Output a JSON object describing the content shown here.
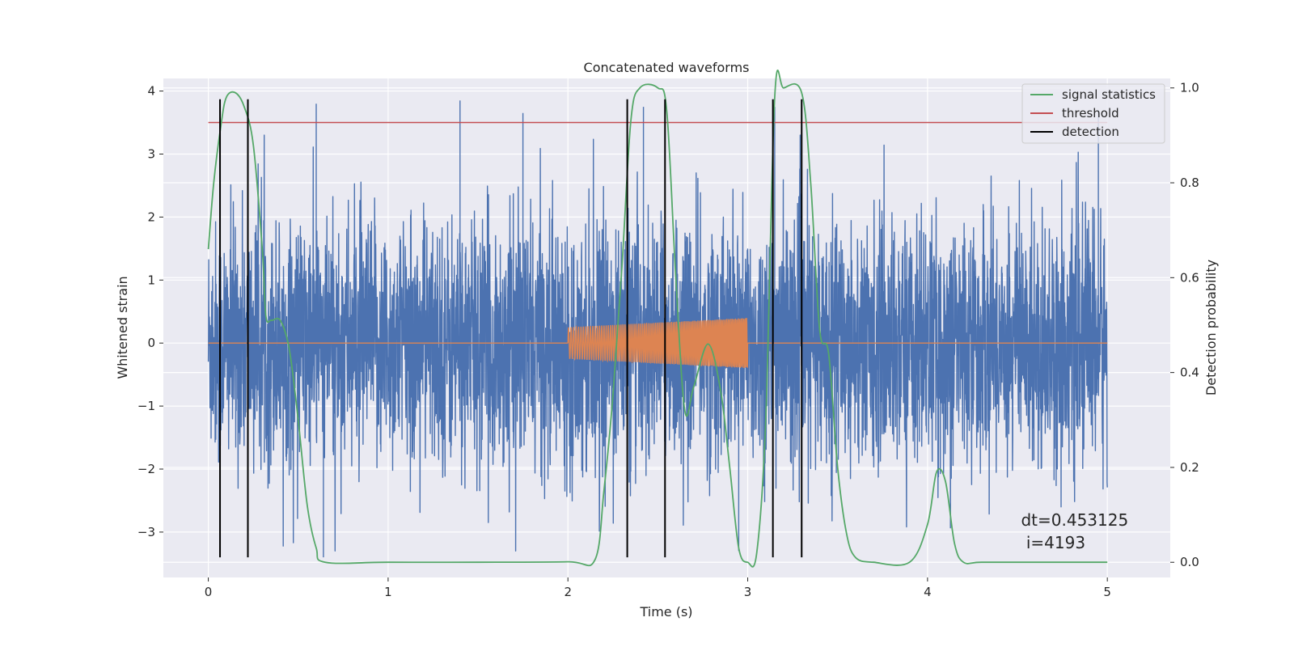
{
  "chart_data": {
    "type": "line",
    "title": "Concatenated waveforms",
    "xlabel": "Time (s)",
    "ylabel": "Whitened strain",
    "y2label": "Detection probability",
    "xlim": [
      -0.25,
      5.35
    ],
    "ylim": [
      -3.72,
      4.2
    ],
    "y2lim": [
      -0.032,
      1.02
    ],
    "xticks": [
      0,
      1,
      2,
      3,
      4,
      5
    ],
    "yticks": [
      -3,
      -2,
      -1,
      0,
      1,
      2,
      3,
      4
    ],
    "y2ticks": [
      0.0,
      0.2,
      0.4,
      0.6,
      0.8,
      1.0
    ],
    "xtick_labels": [
      "0",
      "1",
      "2",
      "3",
      "4",
      "5"
    ],
    "ytick_labels": [
      "−3",
      "−2",
      "−1",
      "0",
      "1",
      "2",
      "3",
      "4"
    ],
    "y2tick_labels": [
      "0.0",
      "0.2",
      "0.4",
      "0.6",
      "0.8",
      "1.0"
    ],
    "grid": true,
    "legend_position": "top-right",
    "legend": [
      {
        "label": "signal statistics",
        "color": "#55a868"
      },
      {
        "label": "threshold",
        "color": "#c44e52"
      },
      {
        "label": "detection",
        "color": "#000000"
      }
    ],
    "series": [
      {
        "axis": "left",
        "color": "#4c72b0",
        "description": "whitened strain noise, amplitude roughly ±2.5 with spikes to 3.8",
        "x_range": [
          0,
          5
        ],
        "envelope_typical": 2.4,
        "spikes": [
          {
            "x": 0.6,
            "y": 3.8
          },
          {
            "x": 1.4,
            "y": 3.85
          },
          {
            "x": 1.75,
            "y": 3.65
          },
          {
            "x": 2.42,
            "y": 3.75
          },
          {
            "x": 3.15,
            "y": 3.75
          },
          {
            "x": 0.64,
            "y": -3.4
          },
          {
            "x": 4.95,
            "y": 3.7
          },
          {
            "x": 2.95,
            "y": -3.3
          }
        ]
      },
      {
        "axis": "left",
        "color": "#dd8452",
        "description": "injected waveform: zero except chirp between 2 and 3 s",
        "chirp_start": 2.0,
        "chirp_end": 3.0,
        "amplitude_start": 0.25,
        "amplitude_end": 0.4
      },
      {
        "name": "signal statistics",
        "axis": "right",
        "color": "#55a868",
        "x": [
          0.0,
          0.03,
          0.07,
          0.1,
          0.15,
          0.2,
          0.25,
          0.3,
          0.32,
          0.35,
          0.4,
          0.45,
          0.5,
          0.55,
          0.6,
          0.65,
          1.0,
          1.5,
          2.0,
          2.15,
          2.2,
          2.25,
          2.3,
          2.35,
          2.4,
          2.5,
          2.55,
          2.6,
          2.65,
          2.7,
          2.78,
          2.85,
          2.9,
          2.95,
          3.0,
          3.05,
          3.1,
          3.15,
          3.2,
          3.3,
          3.35,
          3.4,
          3.45,
          3.5,
          3.55,
          3.6,
          3.7,
          3.9,
          4.0,
          4.05,
          4.1,
          4.15,
          4.2,
          4.3,
          4.6,
          5.0
        ],
        "y": [
          0.66,
          0.8,
          0.92,
          0.98,
          0.99,
          0.96,
          0.88,
          0.66,
          0.52,
          0.51,
          0.51,
          0.45,
          0.3,
          0.12,
          0.03,
          0.0,
          0.0,
          0.0,
          0.001,
          0.005,
          0.15,
          0.35,
          0.62,
          0.93,
          1.0,
          1.0,
          0.95,
          0.6,
          0.32,
          0.37,
          0.46,
          0.36,
          0.2,
          0.03,
          0.0,
          0.02,
          0.3,
          0.98,
          1.0,
          0.99,
          0.8,
          0.49,
          0.44,
          0.2,
          0.06,
          0.01,
          0.0,
          0.0,
          0.08,
          0.19,
          0.17,
          0.04,
          0.0,
          0.0,
          0.0,
          0.0
        ]
      },
      {
        "name": "threshold",
        "axis": "left",
        "color": "#c44e52",
        "x": [
          0,
          5
        ],
        "y": [
          3.5,
          3.5
        ]
      },
      {
        "name": "detection",
        "axis": "left",
        "color": "#000000",
        "type": "vlines",
        "x": [
          0.065,
          0.22,
          2.33,
          2.54,
          3.14,
          3.3
        ],
        "y_range": [
          -3.4,
          3.87
        ]
      }
    ],
    "annotation": {
      "line1": "dt=0.453125",
      "line2": " i=4193",
      "x": 4.52,
      "y": -2.9
    }
  }
}
